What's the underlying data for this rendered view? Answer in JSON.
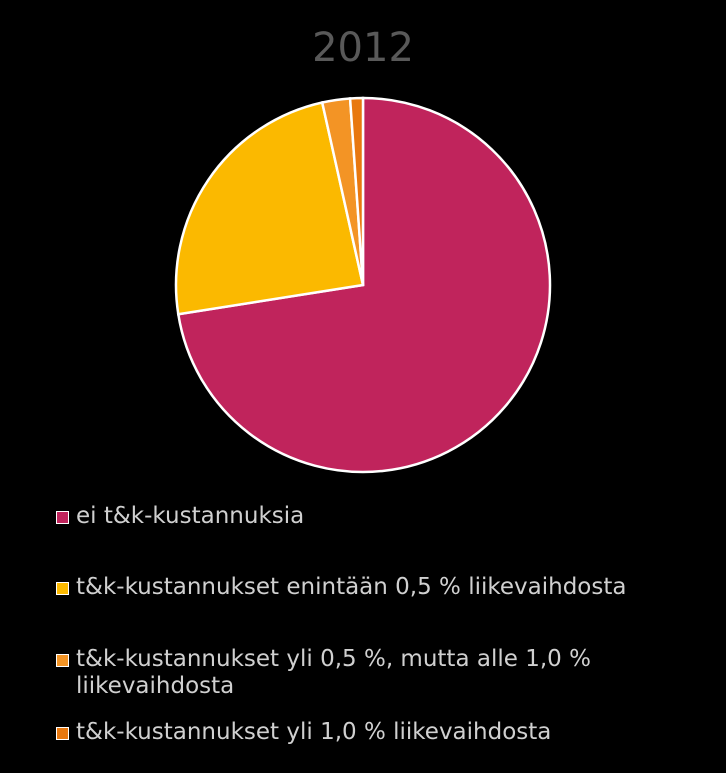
{
  "chart_data": {
    "type": "pie",
    "title": "2012",
    "categories": [
      "ei t&k-kustannuksia",
      "t&k-kustannukset enintään 0,5 % liikevaihdosta",
      "t&k-kustannukset yli 0,5 %, mutta alle 1,0 % liikevaihdosta",
      "t&k-kustannukset yli 1,0 % liikevaihdosta"
    ],
    "values": [
      72.5,
      24,
      2.4,
      1.1
    ],
    "colors": [
      "#c0245c",
      "#fbb900",
      "#f39425",
      "#e8780f"
    ]
  }
}
